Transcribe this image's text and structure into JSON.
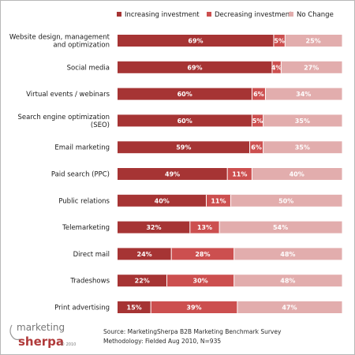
{
  "chart_data": {
    "type": "bar",
    "stacked": true,
    "orientation": "horizontal",
    "categories": [
      [
        "Website design, management",
        "and optimization"
      ],
      [
        "Social media"
      ],
      [
        "Virtual events / webinars"
      ],
      [
        "Search engine optimization",
        "(SEO)"
      ],
      [
        "Email marketing"
      ],
      [
        "Paid search (PPC)"
      ],
      [
        "Public relations"
      ],
      [
        "Telemarketing"
      ],
      [
        "Direct mail"
      ],
      [
        "Tradeshows"
      ],
      [
        "Print advertising"
      ]
    ],
    "series": [
      {
        "name": "Increasing investment",
        "color": "#a63434",
        "values": [
          69,
          69,
          60,
          60,
          59,
          49,
          40,
          32,
          24,
          22,
          15
        ]
      },
      {
        "name": "Decreasing investment",
        "color": "#cc4f4f",
        "values": [
          5,
          4,
          6,
          5,
          6,
          11,
          11,
          13,
          28,
          30,
          39
        ]
      },
      {
        "name": "No Change",
        "color": "#e2adad",
        "values": [
          25,
          27,
          34,
          35,
          35,
          40,
          50,
          54,
          48,
          48,
          47
        ]
      }
    ],
    "value_suffix": "%",
    "xlim": [
      0,
      100
    ],
    "legend_position": "top",
    "grid": false
  },
  "source": {
    "line1": "Source: MarketingSherpa B2B Marketing Benchmark Survey",
    "line2": "Methodology: Fielded Aug 2010, N=935"
  },
  "logo": {
    "part1": "marketing",
    "part2": "sherpa",
    "copyright": "© 2010"
  }
}
